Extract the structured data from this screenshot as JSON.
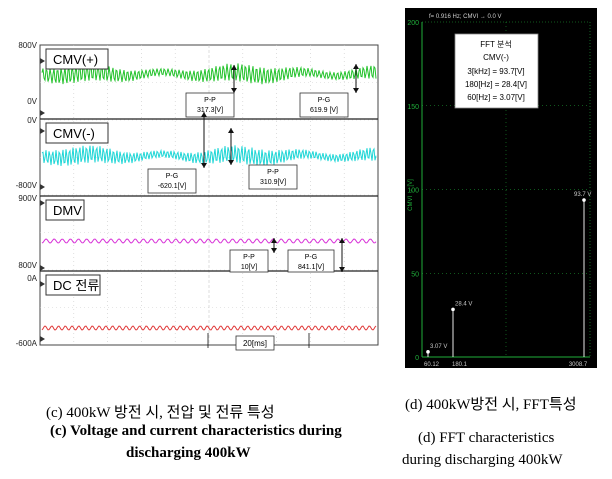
{
  "chart_data": [
    {
      "type": "line",
      "panel": "(c)",
      "channels": [
        {
          "name": "CMV(+)",
          "top_label": "800V",
          "bottom_label": "0V",
          "color": "#22c22a",
          "offset": "upper",
          "amp": "high-frequency switching ripple"
        },
        {
          "name": "CMV(-)",
          "top_label": "0V",
          "bottom_label": "-800V",
          "color": "#1fd6d6",
          "offset": "upper",
          "amp": "high-frequency switching ripple"
        },
        {
          "name": "DMV",
          "top_label": "900V",
          "bottom_label": "800V",
          "color": "#d832d8",
          "offset": "lower"
        },
        {
          "name": "DC 전류",
          "top_label": "0A",
          "bottom_label": "-600A",
          "color": "#e03a3a",
          "offset": "lower"
        }
      ],
      "annotations": [
        {
          "label": "P-P",
          "value": "317.3[V]"
        },
        {
          "label": "P-G",
          "value": "619.9 [V]"
        },
        {
          "label": "P-G",
          "value": "-620.1[V]"
        },
        {
          "label": "P-P",
          "value": "310.9[V]"
        },
        {
          "label": "P-P",
          "value": "10[V]"
        },
        {
          "label": "P-G",
          "value": "841.1[V]"
        }
      ],
      "time_scale": "20[ms]",
      "grid": true
    },
    {
      "type": "bar",
      "panel": "(d)",
      "header_text": "f= 0.916 Hz; CMVI → 0.0 V",
      "yticks": [
        "200",
        "150",
        "100",
        "50",
        "0"
      ],
      "ylim": [
        0,
        200
      ],
      "ylabel": "CMVI → [V]",
      "ticks_x_left": "0.12",
      "x_end_label": "3008.7",
      "legend": {
        "title": "FFT 분석",
        "subtitle": "CMV(-)",
        "lines": [
          "3[kHz] = 93.7[V]",
          "180[Hz] = 28.4[V]",
          "60[Hz] = 3.07[V]"
        ]
      },
      "peaks": [
        {
          "x_label": "60.12",
          "value": 3.07,
          "label": "3.07 V"
        },
        {
          "x_label": "180.1",
          "value": 28.4,
          "label": "28.4 V"
        },
        {
          "x_label": "3008.7",
          "value": 93.7,
          "label": "93.7 V"
        }
      ]
    }
  ],
  "captions": {
    "c_kr": "(c) 400kW 방전 시, 전압 및 전류 특성",
    "c_en1": "(c) Voltage and current characteristics during",
    "c_en2": "discharging 400kW",
    "d_kr": "(d) 400kW방전 시, FFT특성",
    "d_en1": "(d) FFT characteristics",
    "d_en2": "during discharging 400kW"
  }
}
